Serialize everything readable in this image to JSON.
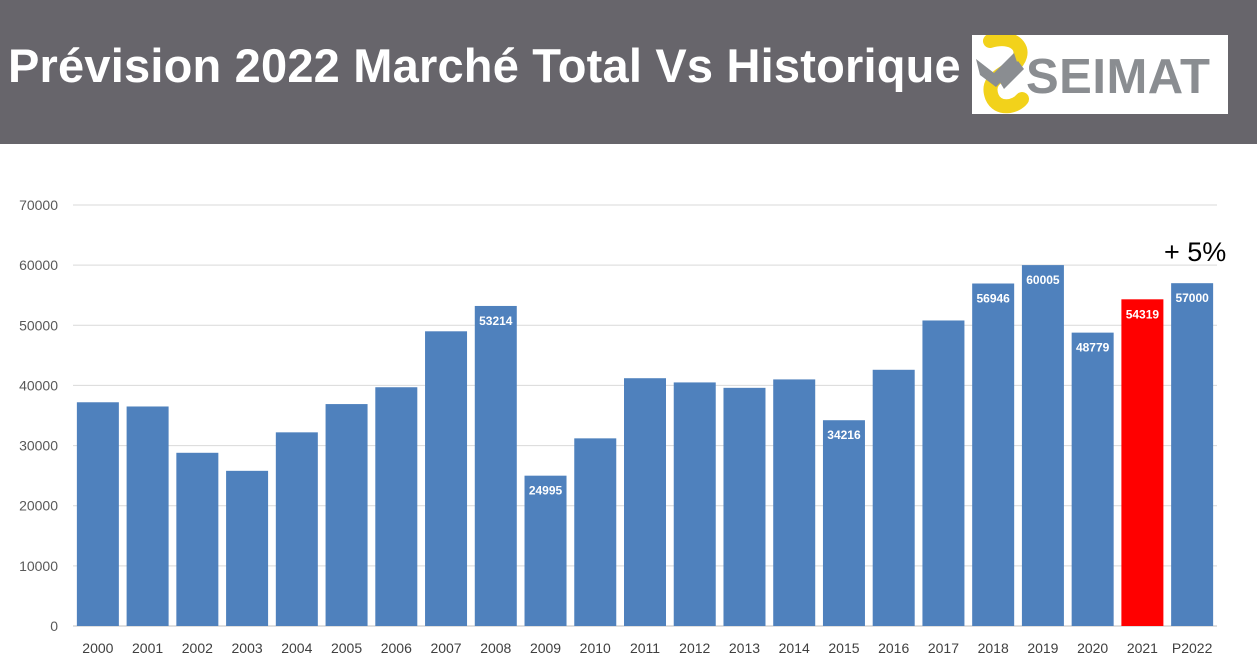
{
  "header": {
    "title": "Prévision 2022 Marché Total Vs Historique",
    "logo_text": "SEIMAT",
    "background": "#67656b"
  },
  "chart_data": {
    "type": "bar",
    "title": "",
    "xlabel": "",
    "ylabel": "",
    "ylim": [
      0,
      70000
    ],
    "yticks": [
      0,
      10000,
      20000,
      30000,
      40000,
      50000,
      60000,
      70000
    ],
    "grid": true,
    "categories": [
      "2000",
      "2001",
      "2002",
      "2003",
      "2004",
      "2005",
      "2006",
      "2007",
      "2008",
      "2009",
      "2010",
      "2011",
      "2012",
      "2013",
      "2014",
      "2015",
      "2016",
      "2017",
      "2018",
      "2019",
      "2020",
      "2021",
      "P2022"
    ],
    "values": [
      37200,
      36500,
      28800,
      25800,
      32200,
      36900,
      39700,
      49000,
      53214,
      24995,
      31200,
      41200,
      40500,
      39600,
      41000,
      34216,
      42600,
      50800,
      56946,
      60005,
      48779,
      54319,
      57000
    ],
    "data_labels": {
      "8": "53214",
      "9": "24995",
      "15": "34216",
      "18": "56946",
      "19": "60005",
      "20": "48779",
      "21": "54319",
      "22": "57000"
    },
    "colors": {
      "default": "#4f81bd",
      "highlight": "#ff0000"
    },
    "highlight_index": 21,
    "annotation": {
      "text": "+ 5%",
      "category_index": 22
    }
  }
}
